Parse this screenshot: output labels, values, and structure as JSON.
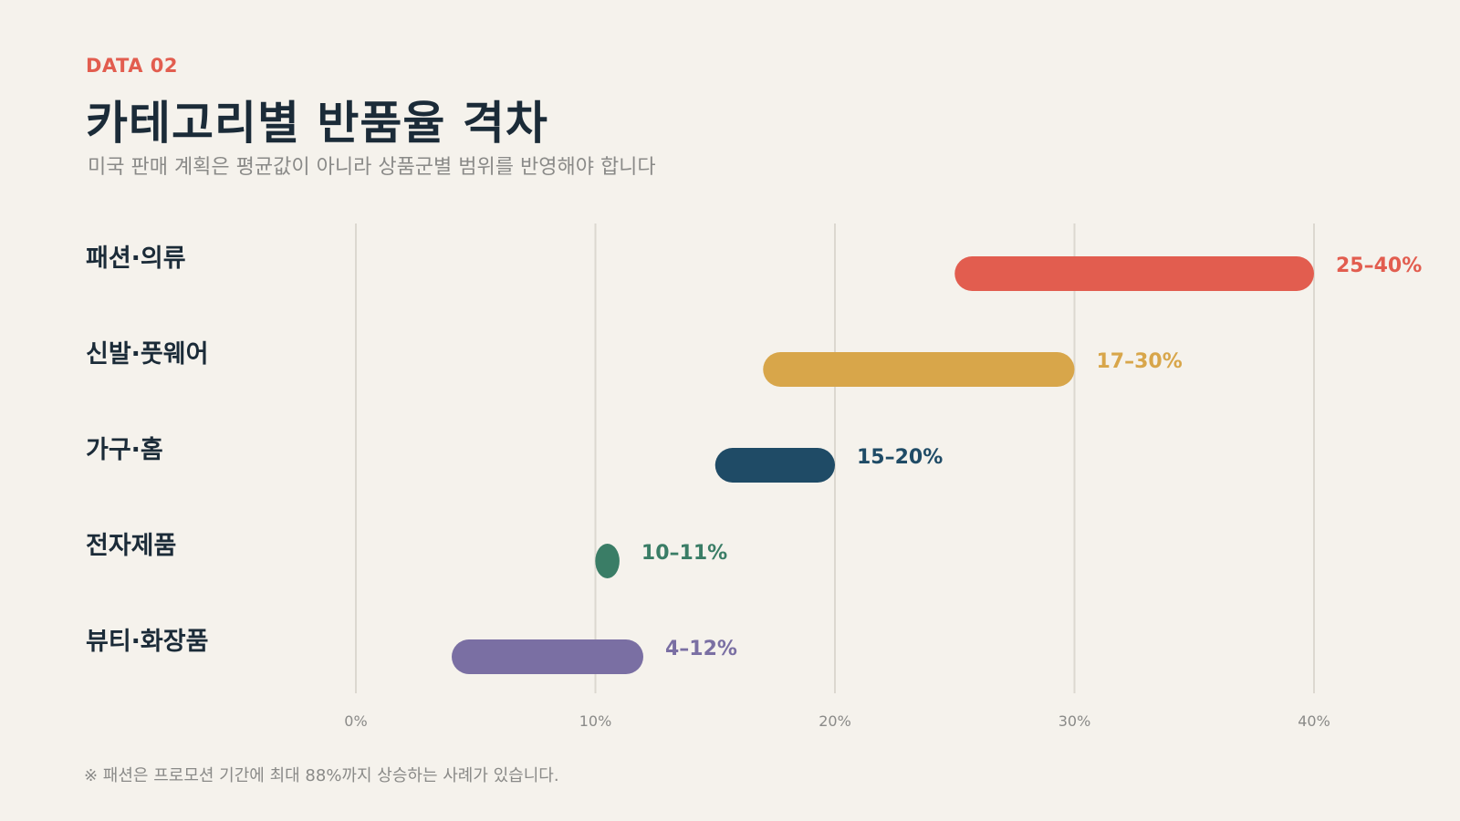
{
  "header": {
    "eyebrow": "DATA 02",
    "title": "카테고리별 반품율 격차",
    "subtitle": "미국 판매 계획은 평균값이 아니라 상품군별 범위를 반영해야 합니다"
  },
  "footnote": "※ 패션은 프로모션 기간에 최대 88%까지 상승하는 사례가 있습니다.",
  "chart_data": {
    "type": "bar",
    "orientation": "horizontal-range",
    "title": "카테고리별 반품율 격차",
    "subtitle": "미국 판매 계획은 평균값이 아니라 상품군별 범위를 반영해야 합니다",
    "xlabel": "",
    "ylabel": "",
    "xlim": [
      0,
      40
    ],
    "x_ticks": [
      {
        "value": 0,
        "label": "0%"
      },
      {
        "value": 10,
        "label": "10%"
      },
      {
        "value": 20,
        "label": "20%"
      },
      {
        "value": 30,
        "label": "30%"
      },
      {
        "value": 40,
        "label": "40%"
      }
    ],
    "grid": true,
    "legend": "none",
    "categories": [
      "패션·의류",
      "신발·풋웨어",
      "가구·홈",
      "전자제품",
      "뷰티·화장품"
    ],
    "series": [
      {
        "ranges": [
          {
            "category": "패션·의류",
            "low": 25,
            "high": 40,
            "label": "25–40%",
            "color": "#e25d4f"
          },
          {
            "category": "신발·풋웨어",
            "low": 17,
            "high": 30,
            "label": "17–30%",
            "color": "#d8a64a"
          },
          {
            "category": "가구·홈",
            "low": 15,
            "high": 20,
            "label": "15–20%",
            "color": "#1f4b66"
          },
          {
            "category": "전자제품",
            "low": 10,
            "high": 11,
            "label": "10–11%",
            "color": "#3a7d66"
          },
          {
            "category": "뷰티·화장품",
            "low": 4,
            "high": 12,
            "label": "4–12%",
            "color": "#7a6fa3"
          }
        ]
      }
    ]
  }
}
